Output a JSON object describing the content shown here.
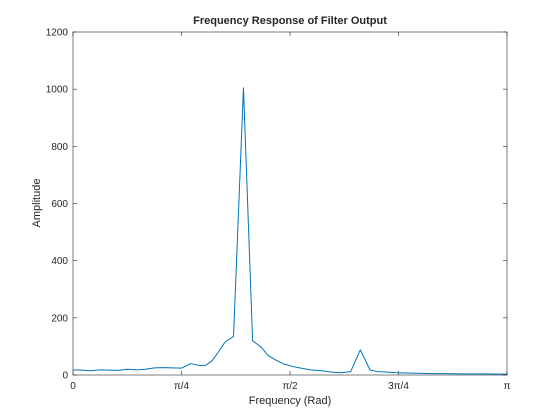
{
  "chart_data": {
    "type": "line",
    "title": "Frequency Response of Filter Output",
    "xlabel": "Frequency (Rad)",
    "ylabel": "Amplitude",
    "xlim": [
      0,
      3.14159
    ],
    "ylim": [
      0,
      1200
    ],
    "x_ticks": [
      {
        "value": 0,
        "label": "0"
      },
      {
        "value": 0.7854,
        "label": "π/4"
      },
      {
        "value": 1.5708,
        "label": "π/2"
      },
      {
        "value": 2.3562,
        "label": "3π/4"
      },
      {
        "value": 3.14159,
        "label": "π"
      }
    ],
    "y_ticks": [
      0,
      200,
      400,
      600,
      800,
      1000,
      1200
    ],
    "grid": false,
    "series": [
      {
        "name": "",
        "color": "#0072bd",
        "x": [
          0,
          0.065,
          0.13,
          0.196,
          0.262,
          0.327,
          0.393,
          0.458,
          0.524,
          0.589,
          0.654,
          0.72,
          0.785,
          0.851,
          0.916,
          0.962,
          1.007,
          1.052,
          1.1,
          1.162,
          1.234,
          1.3,
          1.36,
          1.384,
          1.413,
          1.47,
          1.53,
          1.59,
          1.65,
          1.72,
          1.8,
          1.87,
          1.94,
          2.01,
          2.08,
          2.15,
          2.2,
          2.28,
          2.35,
          2.42,
          2.5,
          2.6,
          2.7,
          2.8,
          2.9,
          3.0,
          3.08,
          3.14159
        ],
        "y": [
          18,
          17,
          15,
          18,
          17,
          16,
          20,
          18,
          20,
          25,
          26,
          25,
          24,
          40,
          33,
          34,
          50,
          80,
          115,
          135,
          1005,
          120,
          98,
          85,
          68,
          52,
          38,
          30,
          24,
          18,
          15,
          10,
          8,
          12,
          88,
          18,
          12,
          10,
          8,
          7,
          6,
          5,
          5,
          4,
          4,
          4,
          3,
          3
        ]
      }
    ]
  }
}
